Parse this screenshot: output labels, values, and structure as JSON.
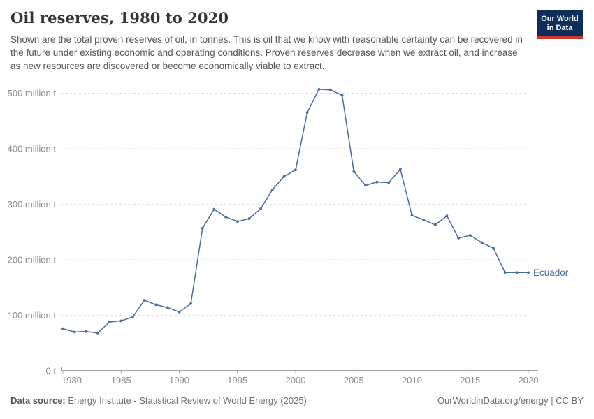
{
  "header": {
    "title": "Oil reserves, 1980 to 2020",
    "subtitle": "Shown are the total proven reserves of oil, in tonnes. This is oil that we know with reasonable certainty can be recovered in the future under existing economic and operating conditions. Proven reserves decrease when we extract oil, and increase as new resources are discovered or become economically viable to extract.",
    "logo": {
      "line1": "Our World",
      "line2": "in Data",
      "bg_color": "#0d2e58",
      "bar_color": "#cd3731"
    }
  },
  "chart_data": {
    "type": "line",
    "title": "Oil reserves, 1980 to 2020",
    "entity": "Ecuador",
    "unit": "tonnes",
    "xlabel": "",
    "ylabel": "",
    "xlim": [
      1980,
      2020
    ],
    "ylim": [
      0,
      525
    ],
    "grid": "horizontal-dashed",
    "legend": "inline-end-label",
    "x_ticks": [
      1980,
      1985,
      1990,
      1995,
      2000,
      2005,
      2010,
      2015,
      2020
    ],
    "y_ticks": [
      {
        "value": 0,
        "label": "0 t"
      },
      {
        "value": 100,
        "label": "100 million t"
      },
      {
        "value": 200,
        "label": "200 million t"
      },
      {
        "value": 300,
        "label": "300 million t"
      },
      {
        "value": 400,
        "label": "400 million t"
      },
      {
        "value": 500,
        "label": "500 million t"
      }
    ],
    "x": [
      1980,
      1981,
      1982,
      1983,
      1984,
      1985,
      1986,
      1987,
      1988,
      1989,
      1990,
      1991,
      1992,
      1993,
      1994,
      1995,
      1996,
      1997,
      1998,
      1999,
      2000,
      2001,
      2002,
      2003,
      2004,
      2005,
      2006,
      2007,
      2008,
      2009,
      2010,
      2011,
      2012,
      2013,
      2014,
      2015,
      2016,
      2017,
      2018,
      2019,
      2020
    ],
    "series": [
      {
        "name": "Ecuador",
        "color": "#4c6a9c",
        "values": [
          76,
          70,
          71,
          68,
          88,
          90,
          97,
          127,
          119,
          114,
          106,
          121,
          257,
          291,
          277,
          269,
          274,
          292,
          326,
          350,
          362,
          465,
          507,
          506,
          496,
          359,
          334,
          340,
          339,
          363,
          280,
          272,
          263,
          279,
          239,
          244,
          231,
          221,
          177,
          177,
          177
        ]
      }
    ],
    "axis_color": "#a6a6a6",
    "grid_color": "#dcdcdc",
    "tick_label_color": "#8c8c8c"
  },
  "footer": {
    "source_label": "Data source:",
    "source_text": " Energy Institute - Statistical Review of World Energy (2025)",
    "right_text": "OurWorldinData.org/energy | CC BY"
  }
}
